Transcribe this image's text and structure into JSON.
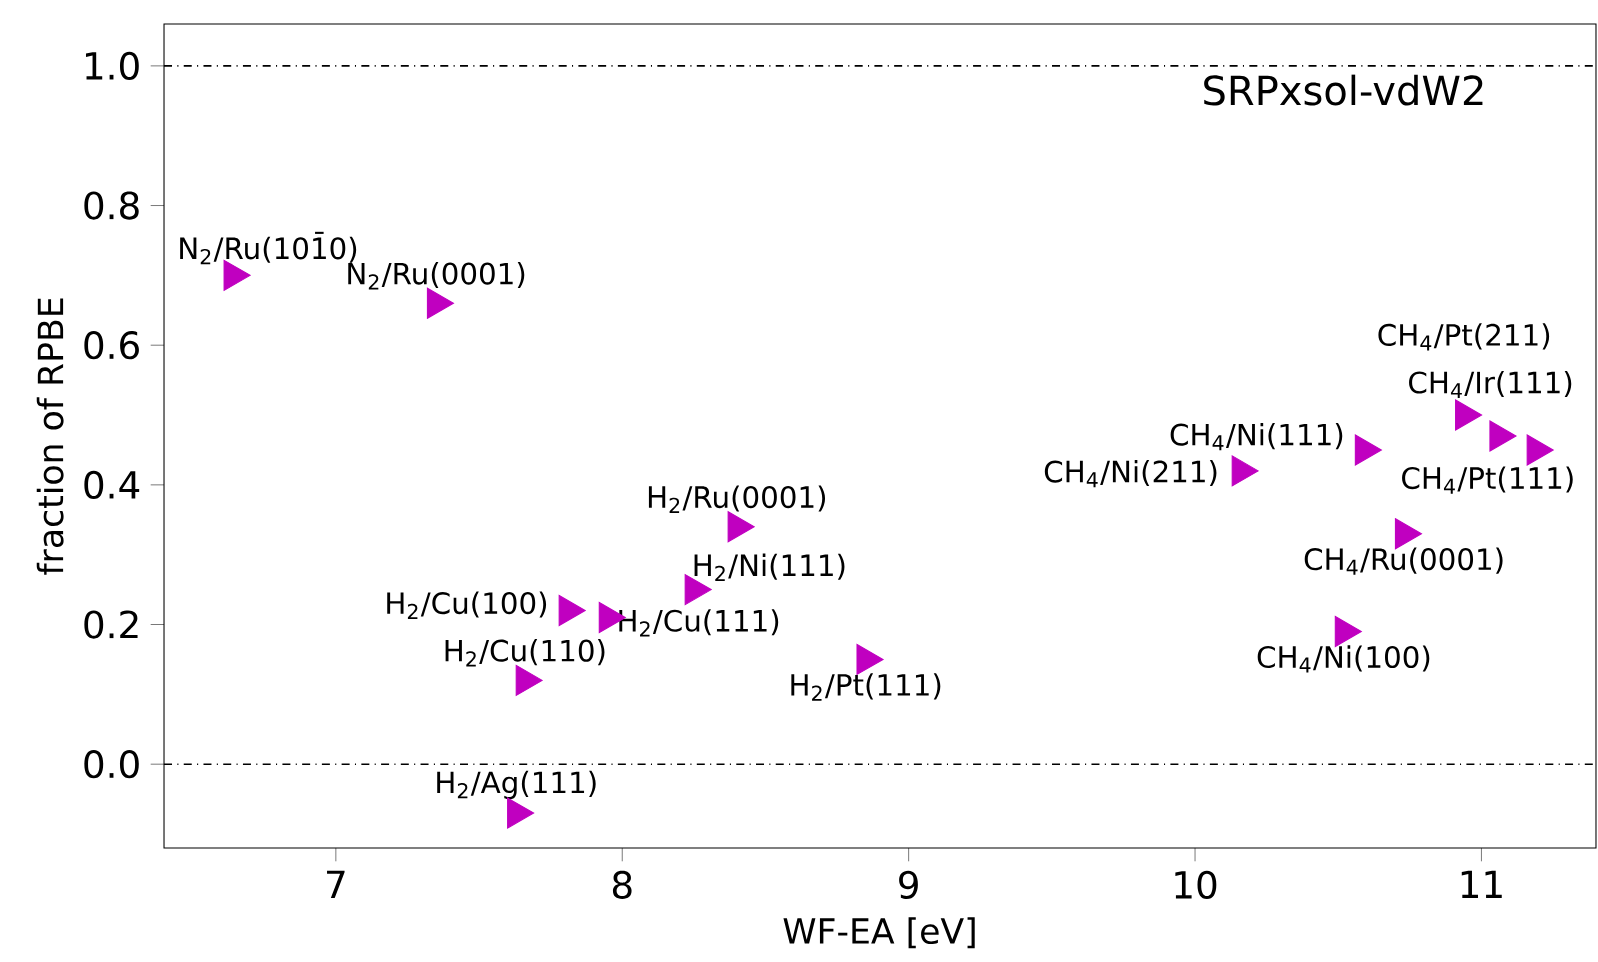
{
  "chart_data": {
    "type": "scatter",
    "xlabel": "WF-EA [eV]",
    "ylabel": "fraction of RPBE",
    "xlim": [
      6.4,
      11.4
    ],
    "ylim": [
      -0.12,
      1.06
    ],
    "xticks": [
      7,
      8,
      9,
      10,
      11
    ],
    "yticks": [
      {
        "value": 0,
        "label": "0.0"
      },
      {
        "value": 0.2,
        "label": "0.2"
      },
      {
        "value": 0.4,
        "label": "0.4"
      },
      {
        "value": 0.6,
        "label": "0.6"
      },
      {
        "value": 0.8,
        "label": "0.8"
      },
      {
        "value": 1.0,
        "label": "1.0"
      }
    ],
    "marker": "triangle",
    "series": [
      {
        "color": "#c000c0",
        "x": [
          6.64,
          7.35,
          8.4,
          8.25,
          7.81,
          7.95,
          7.66,
          8.85,
          7.63,
          10.59,
          10.16,
          10.94,
          11.06,
          11.19,
          10.73,
          10.52
        ],
        "values": [
          0.7,
          0.66,
          0.34,
          0.25,
          0.22,
          0.21,
          0.12,
          0.15,
          -0.07,
          0.45,
          0.42,
          0.5,
          0.47,
          0.45,
          0.33,
          0.19
        ]
      }
    ],
    "ref_lines": [
      {
        "axis": "y",
        "value": 0,
        "color": "#000000",
        "line_style": "dashdot"
      },
      {
        "axis": "y",
        "value": 1,
        "color": "#000000",
        "line_style": "dashdot"
      }
    ],
    "annotations": [
      "SRPxsol-vdW2",
      {
        "text": "N$_{2}$/Ru(101̄0)",
        "x": 6.64,
        "y": 0.7
      },
      {
        "text": "N$_{2}$/Ru(0001)",
        "x": 7.35,
        "y": 0.66
      },
      {
        "text": "H$_{2}$/Ru(0001)",
        "x": 8.4,
        "y": 0.34
      },
      {
        "text": "H$_{2}$/Ni(111)",
        "x": 8.25,
        "y": 0.25
      },
      {
        "text": "H$_{2}$/Cu(100)",
        "x": 7.81,
        "y": 0.22
      },
      {
        "text": "H$_{2}$/Cu(111)",
        "x": 7.95,
        "y": 0.21
      },
      {
        "text": "H$_{2}$/Cu(110)",
        "x": 7.66,
        "y": 0.12
      },
      {
        "text": "H$_{2}$/Pt(111)",
        "x": 8.85,
        "y": 0.15
      },
      {
        "text": "H$_{2}$/Ag(111)",
        "x": 7.63,
        "y": -0.07
      },
      {
        "text": "CH$_{4}$/Ni(111)",
        "x": 10.59,
        "y": 0.45
      },
      {
        "text": "CH$_{4}$/Ni(211)",
        "x": 10.16,
        "y": 0.42
      },
      {
        "text": "CH$_{4}$/Pt(211)",
        "x": 10.94,
        "y": 0.5
      },
      {
        "text": "CH$_{4}$/Ir(111)",
        "x": 11.06,
        "y": 0.47
      },
      {
        "text": "CH$_{4}$/Pt(111)",
        "x": 11.19,
        "y": 0.45
      },
      {
        "text": "CH$_{4}$/Ru(0001)",
        "x": 10.73,
        "y": 0.33
      },
      {
        "text": "CH$_{4}$/Ni(100)",
        "x": 10.52,
        "y": 0.19
      }
    ]
  }
}
